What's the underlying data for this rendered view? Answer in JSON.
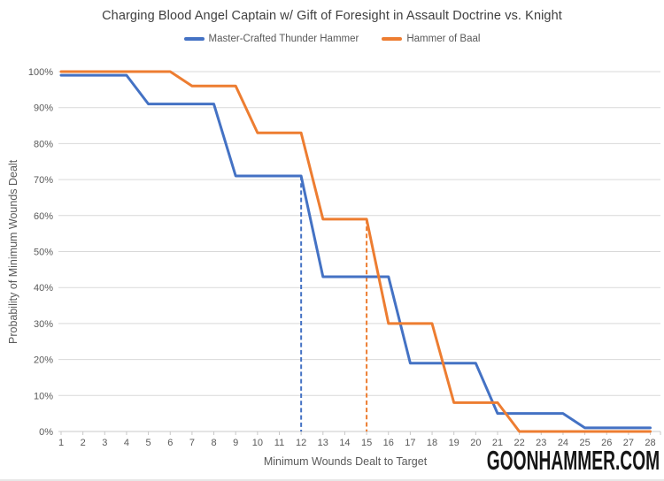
{
  "page": {
    "watermark": "GOONHAMMER.COM"
  },
  "chart_data": {
    "type": "line",
    "title": "Charging Blood Angel Captain w/ Gift of Foresight in Assault Doctrine vs. Knight",
    "xlabel": "Minimum Wounds Dealt to Target",
    "ylabel": "Probability of Minimum Wounds Dealt",
    "legend_position": "top",
    "grid": true,
    "categories": [
      1,
      2,
      3,
      4,
      5,
      6,
      7,
      8,
      9,
      10,
      11,
      12,
      13,
      14,
      15,
      16,
      17,
      18,
      19,
      20,
      21,
      22,
      23,
      24,
      25,
      26,
      27,
      28
    ],
    "series": [
      {
        "name": "Master-Crafted Thunder Hammer",
        "color": "#4472C4",
        "values": [
          99,
          99,
          99,
          99,
          91,
          91,
          91,
          91,
          71,
          71,
          71,
          71,
          43,
          43,
          43,
          43,
          19,
          19,
          19,
          19,
          5,
          5,
          5,
          5,
          1,
          1,
          1,
          1
        ]
      },
      {
        "name": "Hammer of Baal",
        "color": "#ED7D31",
        "values": [
          100,
          100,
          100,
          100,
          100,
          100,
          96,
          96,
          96,
          83,
          83,
          83,
          59,
          59,
          59,
          30,
          30,
          30,
          8,
          8,
          8,
          0,
          0,
          0,
          0,
          0,
          0,
          0
        ]
      }
    ],
    "droplines": [
      {
        "x": 12,
        "y": 71,
        "color": "#4472C4"
      },
      {
        "x": 15,
        "y": 59,
        "color": "#ED7D31"
      }
    ],
    "y_axis": {
      "min": 0,
      "max": 100,
      "step": 10,
      "tick_values": [
        0,
        10,
        20,
        30,
        40,
        50,
        60,
        70,
        80,
        90,
        100
      ],
      "tick_labels": [
        "0%",
        "10%",
        "20%",
        "30%",
        "40%",
        "50%",
        "60%",
        "70%",
        "80%",
        "90%",
        "100%"
      ]
    },
    "colors": {
      "gridline": "#D9D9D9",
      "axis_line": "#C8C8C8",
      "tick_label": "#595959",
      "title": "#3F3F3F"
    }
  }
}
